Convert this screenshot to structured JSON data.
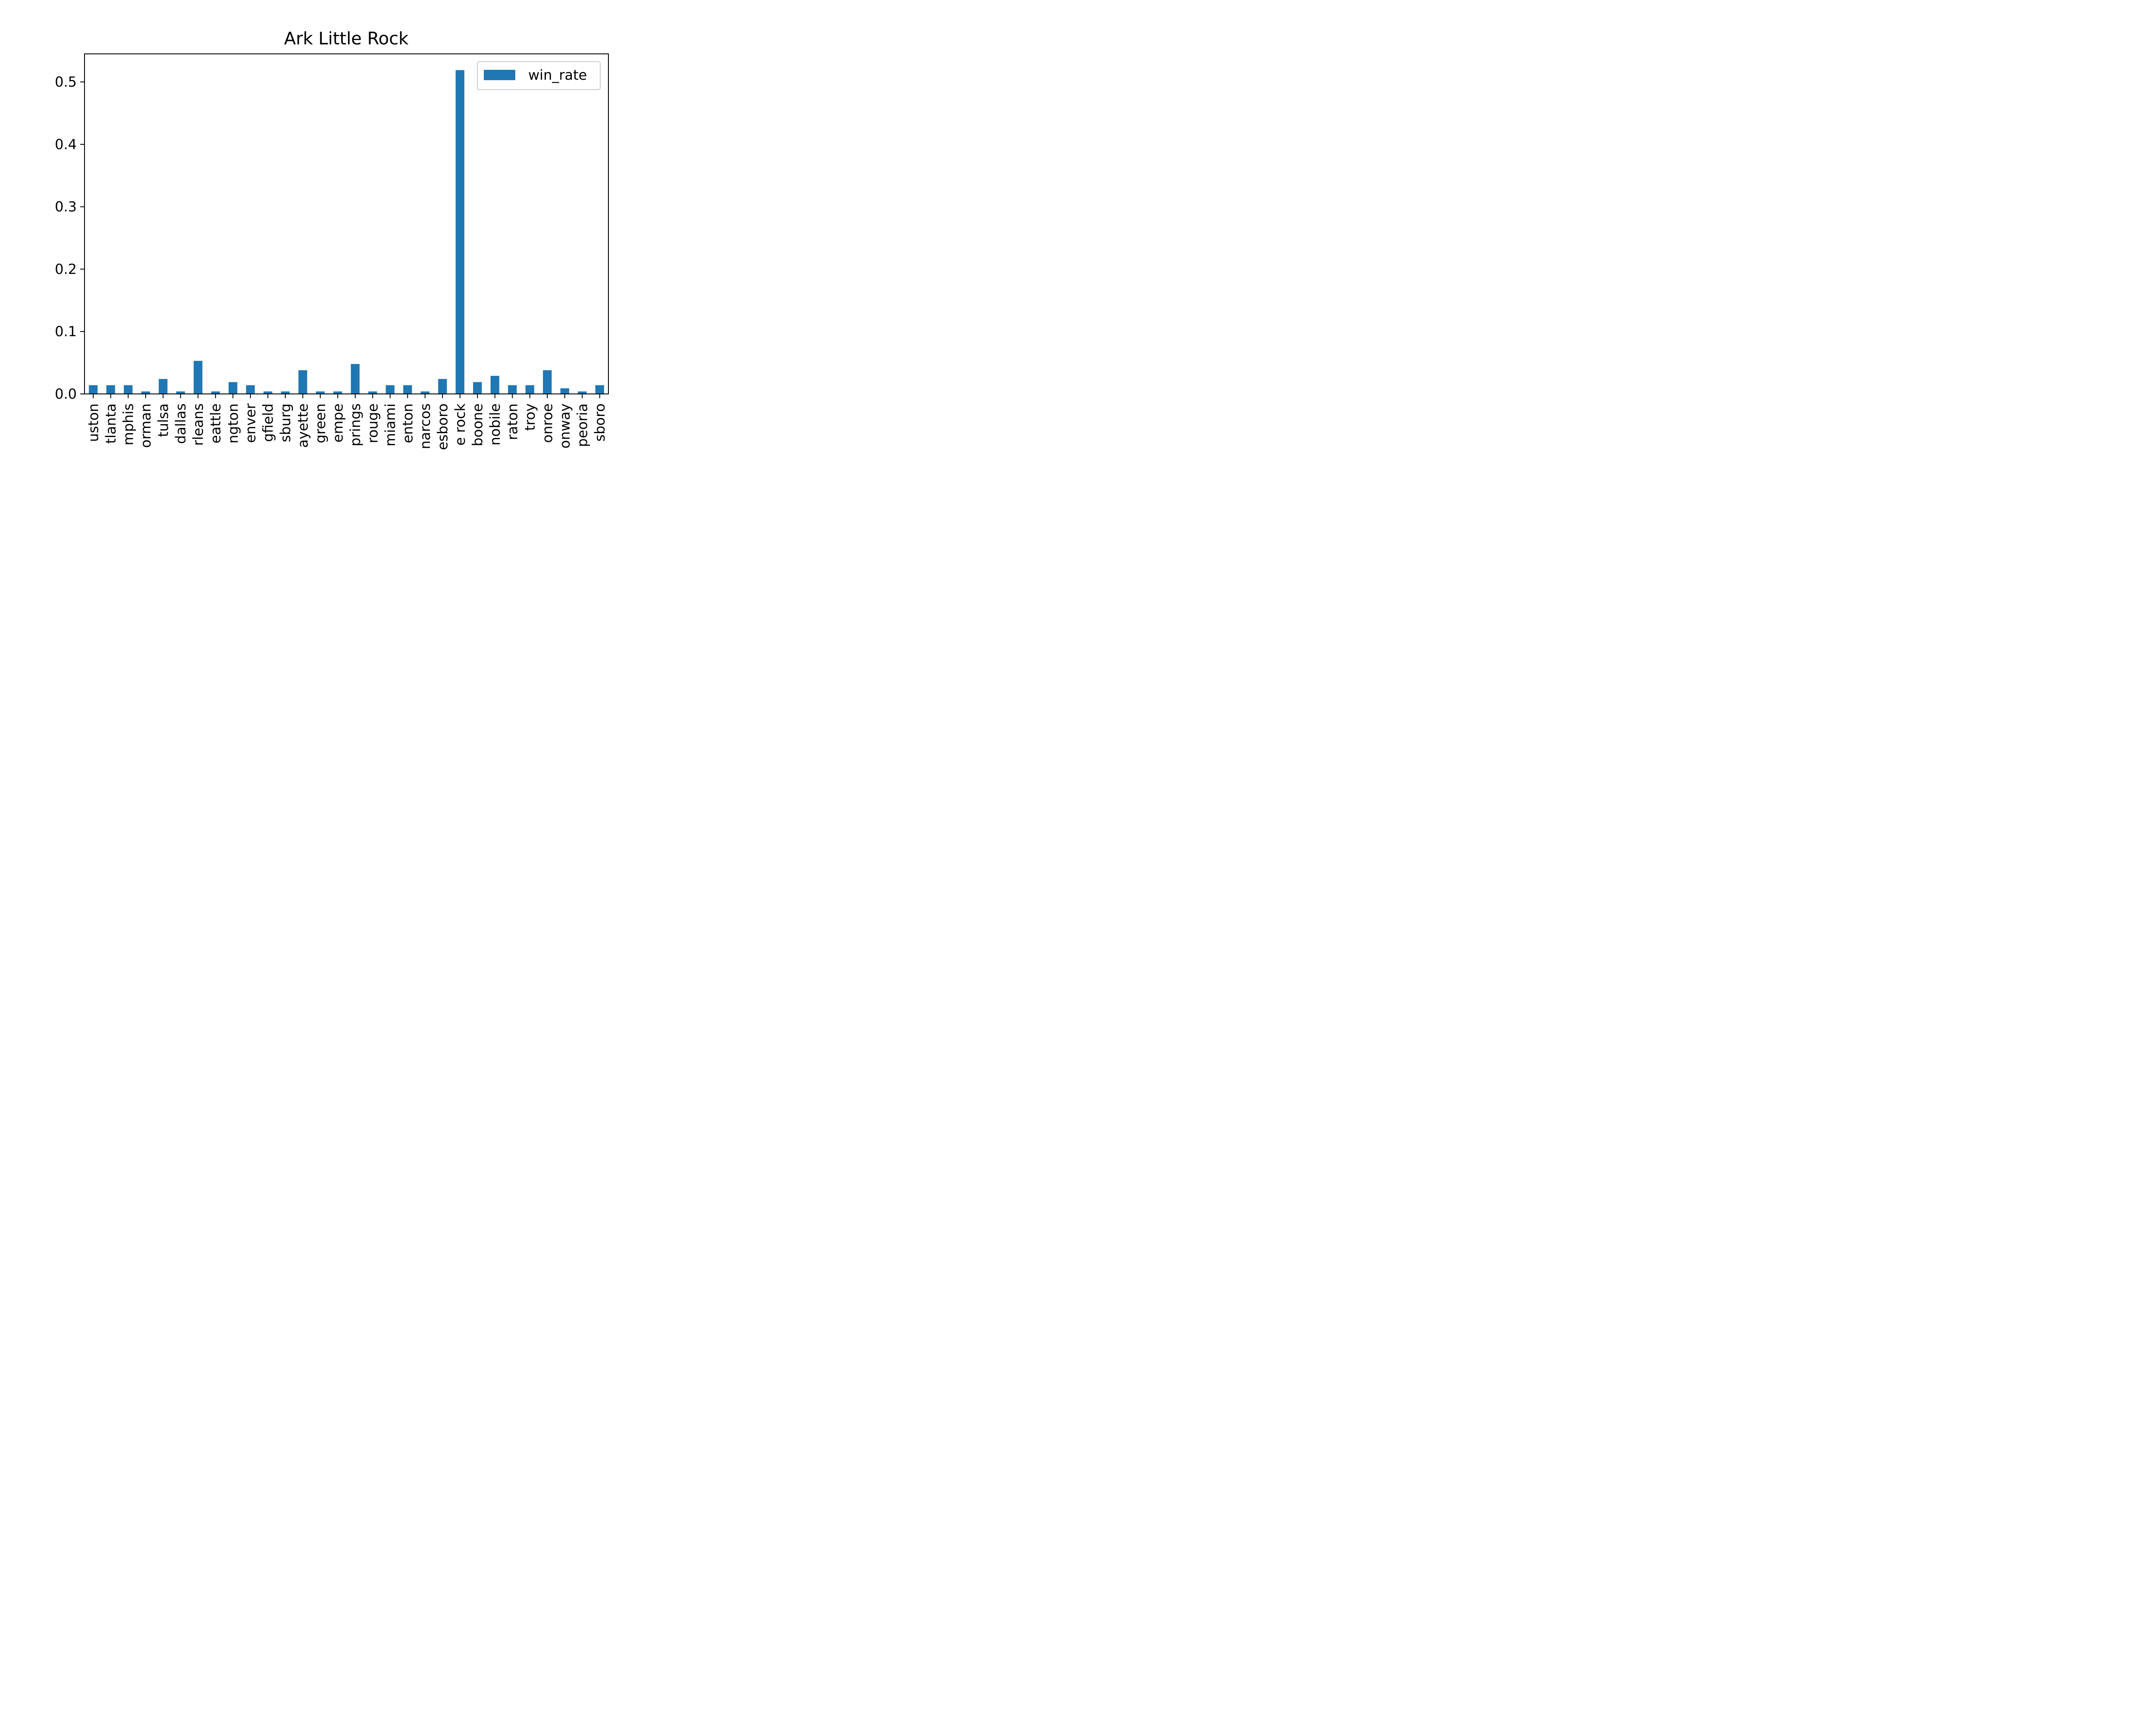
{
  "chart_data": {
    "type": "bar",
    "title": "Ark Little Rock",
    "xlabel": "",
    "ylabel": "",
    "categories": [
      "uston",
      "tlanta",
      "mphis",
      "orman",
      "tulsa",
      "dallas",
      "rleans",
      "eattle",
      "ngton",
      "enver",
      "gfield",
      "sburg",
      "ayette",
      "green",
      "empe",
      "prings",
      "rouge",
      "miami",
      "enton",
      "narcos",
      "esboro",
      "e rock",
      "boone",
      "nobile",
      "raton",
      "troy",
      "onroe",
      "onway",
      "peoria",
      "sboro"
    ],
    "series": [
      {
        "name": "win_rate",
        "color": "#1f77b4",
        "values": [
          0.014,
          0.014,
          0.014,
          0.004,
          0.024,
          0.004,
          0.053,
          0.004,
          0.019,
          0.014,
          0.004,
          0.004,
          0.038,
          0.004,
          0.004,
          0.048,
          0.004,
          0.014,
          0.014,
          0.004,
          0.024,
          0.519,
          0.019,
          0.029,
          0.014,
          0.014,
          0.038,
          0.009,
          0.004,
          0.014
        ]
      }
    ],
    "ylim": [
      0,
      0.545
    ],
    "yticks": [
      0.0,
      0.1,
      0.2,
      0.3,
      0.4,
      0.5
    ],
    "ytick_labels": [
      "0.0",
      "0.1",
      "0.2",
      "0.3",
      "0.4",
      "0.5"
    ],
    "legend_position": "upper right",
    "grid": false
  }
}
